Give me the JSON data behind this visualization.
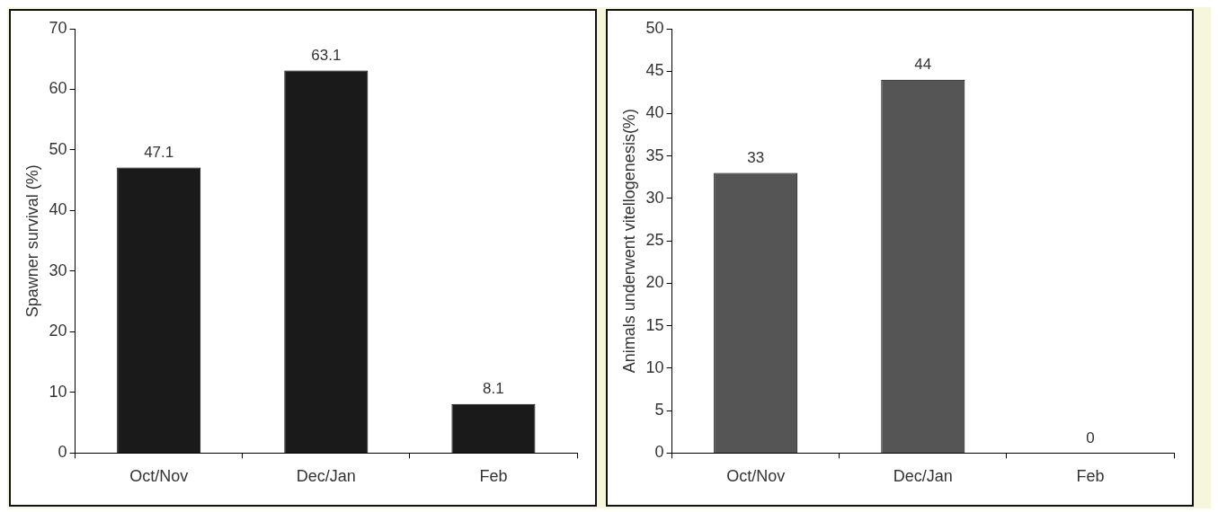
{
  "chart_data": [
    {
      "type": "bar",
      "ylabel": "Spawner survival (%)",
      "categories": [
        "Oct/Nov",
        "Dec/Jan",
        "Feb"
      ],
      "values": [
        47.1,
        63.1,
        8.1
      ],
      "color": "#1a1a1a",
      "ylim": [
        0,
        70
      ],
      "yticks": [
        0,
        10,
        20,
        30,
        40,
        50,
        60,
        70
      ],
      "data_labels": true,
      "grid": false,
      "legend": false
    },
    {
      "type": "bar",
      "ylabel": "Animals underwent vitellogenesis(%)",
      "categories": [
        "Oct/Nov",
        "Dec/Jan",
        "Feb"
      ],
      "values": [
        33,
        44,
        0
      ],
      "color": "#555555",
      "ylim": [
        0,
        50
      ],
      "yticks": [
        0,
        5,
        10,
        15,
        20,
        25,
        30,
        35,
        40,
        45,
        50
      ],
      "data_labels": true,
      "grid": false,
      "legend": false
    }
  ]
}
